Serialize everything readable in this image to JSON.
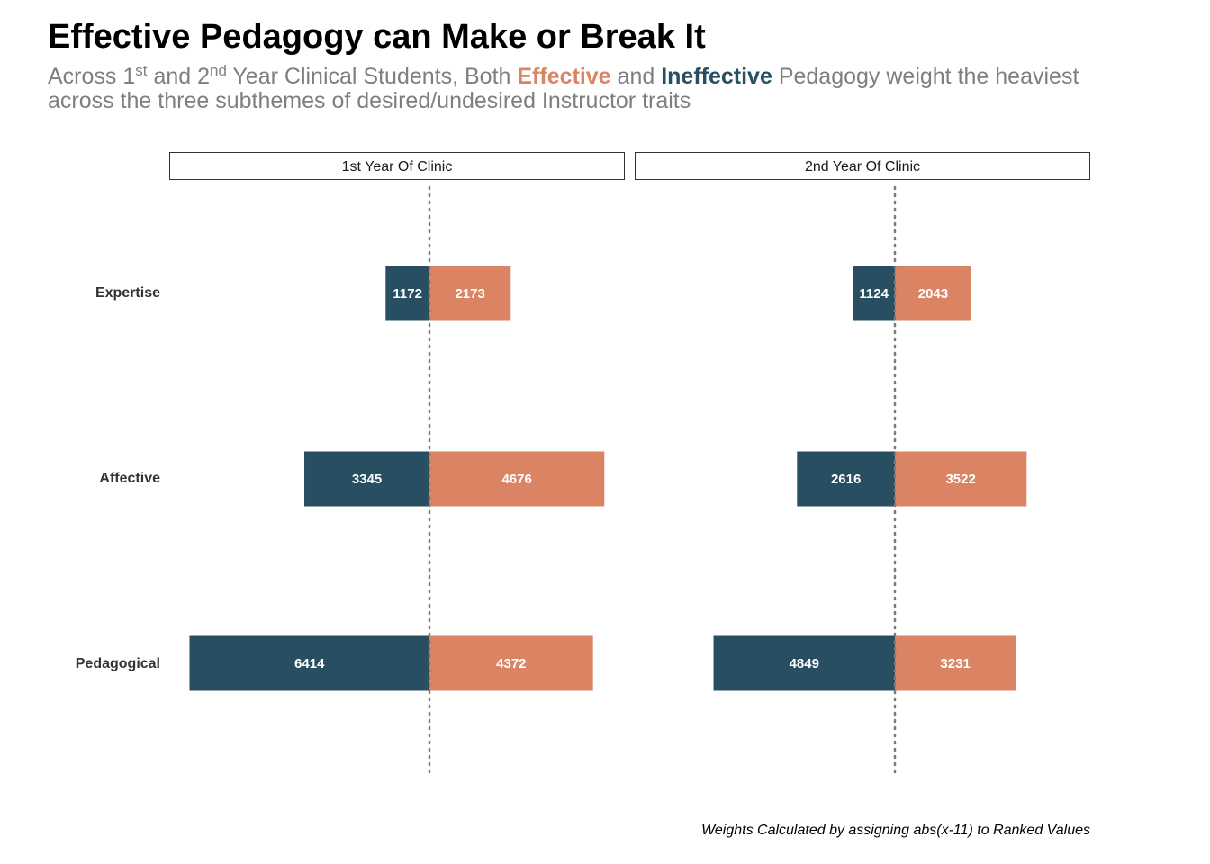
{
  "title": "Effective Pedagogy can Make or Break It",
  "subtitle": {
    "t1": "Across 1",
    "sup1": "st",
    "t2": " and 2",
    "sup2": "nd",
    "t3": " Year Clinical Students, Both ",
    "effective": "Effective",
    "t4": " and ",
    "ineffective": "Ineffective",
    "t5": " Pedagogy weight the heaviest across the three subthemes of desired/undesired Instructor traits"
  },
  "caption": "Weights Calculated by assigning abs(x-11) to Ranked Values",
  "colors": {
    "effective": "#db8463",
    "ineffective": "#274f61"
  },
  "chart_data": {
    "type": "bar",
    "orientation": "horizontal-diverging",
    "categories": [
      "Expertise",
      "Affective",
      "Pedagogical"
    ],
    "panels": [
      {
        "label": "1st Year Of Clinic",
        "series": [
          {
            "name": "Ineffective",
            "values": [
              1172,
              3345,
              6414
            ]
          },
          {
            "name": "Effective",
            "values": [
              2173,
              4676,
              4372
            ]
          }
        ]
      },
      {
        "label": "2nd Year Of Clinic",
        "series": [
          {
            "name": "Ineffective",
            "values": [
              1124,
              2616,
              4849
            ]
          },
          {
            "name": "Effective",
            "values": [
              2043,
              3522,
              3231
            ]
          }
        ]
      }
    ],
    "reference_line": 0,
    "grid": false
  }
}
